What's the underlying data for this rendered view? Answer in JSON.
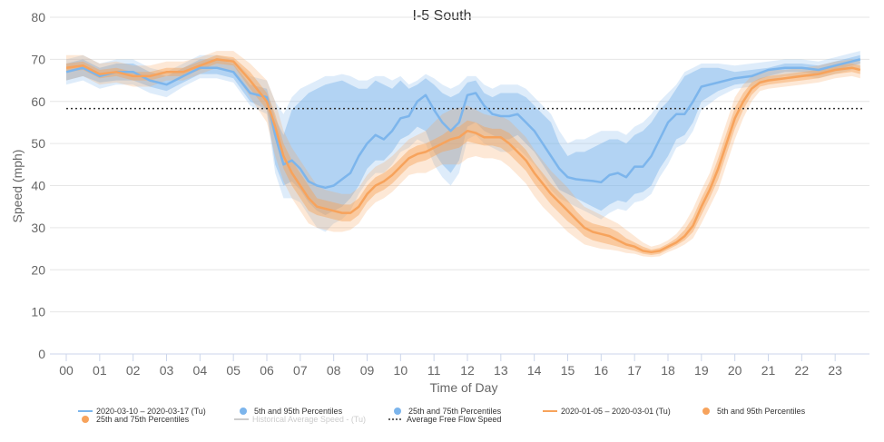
{
  "chart_data": {
    "type": "line",
    "title": "I-5 South",
    "xlabel": "Time of Day",
    "ylabel": "Speed (mph)",
    "ylim": [
      0,
      80
    ],
    "yticks": [
      "0",
      "10",
      "20",
      "30",
      "40",
      "50",
      "60",
      "70",
      "80"
    ],
    "xlim": [
      0,
      24
    ],
    "xticks": [
      "00",
      "01",
      "02",
      "03",
      "04",
      "05",
      "06",
      "07",
      "08",
      "09",
      "10",
      "11",
      "12",
      "13",
      "14",
      "15",
      "16",
      "17",
      "18",
      "19",
      "20",
      "21",
      "22",
      "23"
    ],
    "grid": true,
    "legend_position": "bottom",
    "average_free_flow_speed": 58.3,
    "series": [
      {
        "name": "2020-03-10 – 2020-03-17 (Tu)",
        "color": "#7cb5ec",
        "x": [
          0,
          0.5,
          1,
          1.5,
          2,
          2.5,
          3,
          3.5,
          4,
          4.5,
          5,
          5.5,
          6,
          6.25,
          6.5,
          6.75,
          7,
          7.25,
          7.5,
          7.75,
          8,
          8.25,
          8.5,
          8.75,
          9,
          9.25,
          9.5,
          9.75,
          10,
          10.25,
          10.5,
          10.75,
          11,
          11.25,
          11.5,
          11.75,
          12,
          12.25,
          12.5,
          12.75,
          13,
          13.25,
          13.5,
          13.75,
          14,
          14.25,
          14.5,
          14.75,
          15,
          15.25,
          15.5,
          15.75,
          16,
          16.25,
          16.5,
          16.75,
          17,
          17.25,
          17.5,
          17.75,
          18,
          18.25,
          18.5,
          18.75,
          19,
          19.5,
          20,
          20.5,
          21,
          21.5,
          22,
          22.5,
          23,
          23.5,
          23.75
        ],
        "mean": [
          67,
          68,
          66,
          67,
          67,
          65,
          64,
          66,
          68,
          68,
          67,
          62,
          61,
          52,
          45,
          46,
          44,
          41,
          40,
          39.5,
          40,
          41.5,
          43,
          47,
          50,
          52,
          51,
          53,
          56,
          56.5,
          60,
          61.5,
          58,
          55,
          53,
          55,
          61.5,
          62,
          59,
          57,
          56.5,
          56.5,
          57,
          55,
          53,
          50,
          47,
          44,
          42,
          41.5,
          41.3,
          41.1,
          40.8,
          42.5,
          43,
          42,
          44.5,
          44.5,
          47,
          51,
          55,
          57,
          57,
          60,
          63.5,
          64.5,
          65.5,
          66,
          67.5,
          68,
          68,
          67.5,
          68.5,
          69.5,
          70
        ],
        "p25": [
          65,
          66,
          64.5,
          65,
          65,
          63.5,
          62.5,
          64.5,
          66.5,
          66.5,
          65.5,
          60,
          58,
          45,
          40,
          41,
          39,
          36,
          34,
          33,
          34,
          35,
          37,
          40,
          44,
          46,
          46,
          48,
          51,
          52,
          54,
          53,
          48,
          45,
          43,
          46,
          54,
          55,
          53,
          52,
          51,
          51,
          52,
          50,
          48,
          45,
          42,
          39,
          38,
          37,
          36,
          35,
          34,
          35.5,
          36.5,
          36,
          38,
          38.5,
          40,
          44,
          47,
          51,
          52,
          55,
          60,
          62.5,
          64,
          64.5,
          66,
          67,
          67,
          66.5,
          67.5,
          68.5,
          69
        ],
        "p75": [
          69,
          70,
          68,
          69,
          69,
          67,
          66,
          68,
          70,
          70,
          69,
          64,
          63,
          56,
          52,
          58,
          60,
          62,
          63,
          64,
          64.5,
          65,
          64,
          63,
          63,
          65,
          64,
          63,
          65,
          63,
          64,
          65.5,
          64,
          62,
          61,
          62,
          64.5,
          65,
          62,
          61,
          62,
          62,
          62,
          61,
          59,
          57,
          55,
          50,
          47,
          48,
          48,
          49,
          50,
          51,
          51,
          50,
          52,
          53,
          55,
          58,
          60,
          63,
          66,
          67,
          68,
          68,
          67,
          67.5,
          68,
          69,
          69,
          68.5,
          69.5,
          70.5,
          71
        ],
        "p5": [
          64,
          65,
          63,
          64,
          64,
          62,
          61,
          63.5,
          65.5,
          65.5,
          64.5,
          59,
          57,
          43,
          37,
          37,
          36,
          33,
          30,
          29,
          31,
          32,
          34,
          38,
          41,
          43,
          43,
          45,
          48,
          49,
          51,
          50,
          45,
          42,
          40,
          43,
          51,
          52,
          50,
          49,
          48,
          48,
          49,
          47,
          45,
          42,
          39,
          37,
          36,
          35,
          34,
          33,
          32,
          33.5,
          34.5,
          34,
          36,
          36.5,
          38,
          42,
          45,
          49,
          50,
          53,
          58,
          61,
          63,
          63.5,
          65,
          66,
          66,
          65.5,
          66.5,
          67.5,
          68
        ],
        "p95": [
          70,
          71,
          69,
          70,
          70,
          68,
          67,
          69,
          71,
          71,
          70,
          66,
          65,
          60,
          57,
          61,
          63,
          64,
          65,
          66,
          66,
          66.5,
          66,
          65,
          65,
          66,
          66,
          65,
          66,
          64,
          65,
          66.5,
          65.5,
          64,
          63,
          64,
          66,
          66,
          64,
          63,
          64,
          64,
          64,
          63,
          61,
          59,
          57,
          53,
          50,
          51,
          51,
          52,
          53,
          53,
          53,
          52,
          54,
          55,
          57,
          60,
          62,
          64,
          67,
          68,
          69,
          69,
          68.5,
          69,
          69.5,
          70,
          70,
          69.5,
          70.5,
          71.5,
          72
        ]
      },
      {
        "name": "2020-01-05 – 2020-03-01 (Tu)",
        "color": "#f7a35c",
        "x": [
          0,
          0.5,
          1,
          1.5,
          2,
          2.5,
          3,
          3.5,
          4,
          4.5,
          5,
          5.5,
          6,
          6.25,
          6.5,
          6.75,
          7,
          7.25,
          7.5,
          7.75,
          8,
          8.25,
          8.5,
          8.75,
          9,
          9.25,
          9.5,
          9.75,
          10,
          10.25,
          10.5,
          10.75,
          11,
          11.25,
          11.5,
          11.75,
          12,
          12.25,
          12.5,
          12.75,
          13,
          13.25,
          13.5,
          13.75,
          14,
          14.25,
          14.5,
          14.75,
          15,
          15.25,
          15.5,
          15.75,
          16,
          16.25,
          16.5,
          16.75,
          17,
          17.25,
          17.5,
          17.75,
          18,
          18.25,
          18.5,
          18.75,
          19,
          19.25,
          19.5,
          19.75,
          20,
          20.25,
          20.5,
          20.75,
          21,
          21.5,
          22,
          22.5,
          23,
          23.5,
          23.75
        ],
        "mean": [
          68,
          68.5,
          66.5,
          67,
          66,
          66,
          67,
          67,
          68.5,
          70,
          69.5,
          65,
          60,
          54,
          47,
          43,
          40,
          37,
          35,
          34.5,
          34,
          33.5,
          33.5,
          35,
          38,
          40,
          41,
          42.5,
          44.5,
          46.5,
          47.5,
          48,
          49,
          50,
          51,
          51.5,
          53,
          52.5,
          51.5,
          51.5,
          51.5,
          50,
          48,
          46,
          43,
          40.5,
          38,
          36,
          34,
          32,
          30,
          29,
          28.5,
          28,
          27,
          26,
          25.5,
          24.5,
          24.2,
          24.5,
          25.5,
          26.5,
          28,
          30.5,
          35,
          39,
          44,
          50,
          56,
          60,
          63,
          64.5,
          65,
          65.5,
          66,
          66.5,
          67.5,
          68,
          67.5
        ],
        "p25": [
          67,
          67.5,
          65.5,
          66,
          65,
          65,
          66,
          66,
          67.5,
          69,
          68.5,
          63,
          58,
          51,
          44,
          40,
          37,
          34,
          33,
          32.5,
          32,
          31.5,
          31.5,
          33,
          36,
          38,
          39,
          40.5,
          42.5,
          44.5,
          45.5,
          46,
          47,
          48,
          48.5,
          49,
          50.5,
          50,
          49.5,
          49.5,
          49,
          47.5,
          45.5,
          43.5,
          40.5,
          38,
          35.5,
          33.5,
          31.5,
          30,
          28,
          27,
          26.5,
          26,
          25.5,
          25,
          24.5,
          23.8,
          23.5,
          23.8,
          24.8,
          25.8,
          27,
          29,
          33,
          37,
          41.5,
          47.5,
          53.5,
          58,
          61.5,
          63.5,
          64,
          64.5,
          65,
          65.5,
          66.5,
          67,
          66.5
        ],
        "p75": [
          69,
          69.5,
          67.5,
          68,
          67,
          67,
          68,
          68,
          69.5,
          71,
          70.5,
          67,
          62,
          57,
          50,
          46,
          43,
          40,
          37,
          36.5,
          36,
          35.5,
          35.5,
          37,
          40,
          42,
          43,
          44.5,
          46.5,
          48.5,
          49.5,
          50,
          51,
          52,
          53.5,
          54,
          55.5,
          55,
          54,
          53.5,
          53.5,
          52.5,
          50.5,
          48.5,
          45.5,
          43,
          40.5,
          38.5,
          36.5,
          34,
          32,
          31,
          30.5,
          30,
          29,
          27.5,
          26.5,
          25.5,
          24.8,
          25.2,
          26.2,
          27.5,
          29.5,
          32.5,
          37,
          41,
          46.5,
          52.5,
          58.5,
          62,
          64.5,
          65.5,
          66,
          66.5,
          67,
          67.5,
          68.5,
          69,
          68.5
        ],
        "p5": [
          65,
          66,
          64,
          64.5,
          63.5,
          63.5,
          65,
          65,
          66.5,
          68,
          67,
          61,
          55,
          47,
          41,
          37,
          34,
          31,
          30,
          29.5,
          29,
          29,
          29.5,
          31,
          34,
          36,
          37,
          38.5,
          40.5,
          42.5,
          43,
          43,
          44,
          45,
          45,
          45,
          46.5,
          47,
          46.5,
          46.5,
          46,
          44.5,
          42.5,
          40.5,
          37.5,
          35,
          33,
          31,
          29,
          27.5,
          26,
          25.5,
          25,
          24.8,
          24.5,
          24,
          23.8,
          23.2,
          23,
          23.2,
          24.2,
          25,
          26,
          27.5,
          31,
          35,
          39,
          45,
          51,
          56,
          60,
          62.5,
          63,
          63.5,
          64,
          64.5,
          65.5,
          66,
          65.5
        ],
        "p95": [
          71,
          71,
          69,
          69.5,
          68.5,
          68.5,
          69.5,
          69.5,
          70.5,
          72,
          72,
          69,
          65,
          60,
          53,
          49,
          46,
          43,
          40,
          39,
          38.5,
          38,
          38,
          39.5,
          42.5,
          44.5,
          45.5,
          47,
          49,
          51,
          52,
          53,
          55,
          57,
          58,
          58.5,
          59,
          58,
          57,
          56.5,
          56.5,
          55.5,
          53.5,
          51.5,
          48.5,
          46,
          43.5,
          41.5,
          39.5,
          37,
          35,
          34,
          33,
          32,
          31,
          29.5,
          28,
          26.5,
          25.5,
          26,
          27,
          28.5,
          31,
          34.5,
          39,
          43,
          49,
          55,
          61,
          64,
          66,
          67,
          67.5,
          67.5,
          68,
          68.5,
          69.5,
          70,
          69.5
        ]
      }
    ]
  },
  "legend": {
    "items": [
      {
        "label": "2020-03-10 – 2020-03-17 (Tu)",
        "symbol": "line",
        "color": "#7cb5ec"
      },
      {
        "label": "5th and 95th Percentiles",
        "symbol": "dot",
        "color": "#7cb5ec"
      },
      {
        "label": "25th and 75th Percentiles",
        "symbol": "dot",
        "color": "#7cb5ec"
      },
      {
        "label": "2020-01-05 – 2020-03-01 (Tu)",
        "symbol": "line",
        "color": "#f7a35c"
      },
      {
        "label": "5th and 95th Percentiles",
        "symbol": "dot",
        "color": "#f7a35c"
      },
      {
        "label": "25th and 75th Percentiles",
        "symbol": "dot",
        "color": "#f7a35c"
      },
      {
        "label": "Historical Average Speed - (Tu)",
        "symbol": "line",
        "color": "#cccccc",
        "hidden": true
      },
      {
        "label": "Average Free Flow Speed",
        "symbol": "dotted",
        "color": "#333333"
      }
    ]
  }
}
